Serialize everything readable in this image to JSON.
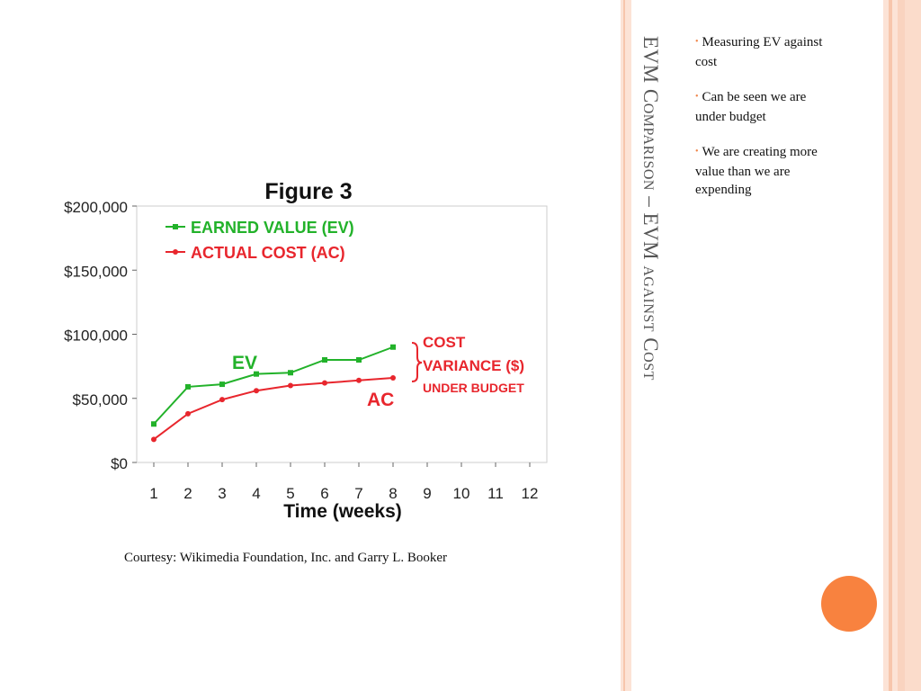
{
  "slide": {
    "title": "EVM Comparison – EVM against Cost",
    "bullets": [
      "Measuring EV against cost",
      "Can be seen we are under budget",
      "We are creating more value than we are expending"
    ],
    "courtesy": "Courtesy: Wikimedia Foundation, Inc. and Garry L. Booker"
  },
  "colors": {
    "ev": "#22b22a",
    "ac": "#e8262d",
    "accent": "#f8823f",
    "stripe_light": "#fce3d6",
    "stripe_mid": "#f7c6ac"
  },
  "chart_data": {
    "type": "line",
    "title": "Figure 3",
    "xlabel": "Time (weeks)",
    "ylabel": "",
    "x": [
      1,
      2,
      3,
      4,
      5,
      6,
      7,
      8
    ],
    "xticks": [
      "1",
      "2",
      "3",
      "4",
      "5",
      "6",
      "7",
      "8",
      "9",
      "10",
      "11",
      "12"
    ],
    "yticks": [
      "$0",
      "$50,000",
      "$100,000",
      "$150,000",
      "$200,000"
    ],
    "ylim": [
      0,
      200000
    ],
    "xlim": [
      0.5,
      12.5
    ],
    "grid": false,
    "legend_position": "top-left",
    "series": [
      {
        "name": "EARNED VALUE (EV)",
        "label": "EV",
        "color": "#22b22a",
        "values": [
          30000,
          59000,
          61000,
          69000,
          70000,
          80000,
          80000,
          90000
        ]
      },
      {
        "name": "ACTUAL COST (AC)",
        "label": "AC",
        "color": "#e8262d",
        "values": [
          18000,
          38000,
          49000,
          56000,
          60000,
          62000,
          64000,
          66000
        ]
      }
    ],
    "annotation": {
      "line1": "COST",
      "line2": "VARIANCE ($)",
      "line3": "UNDER BUDGET"
    }
  }
}
